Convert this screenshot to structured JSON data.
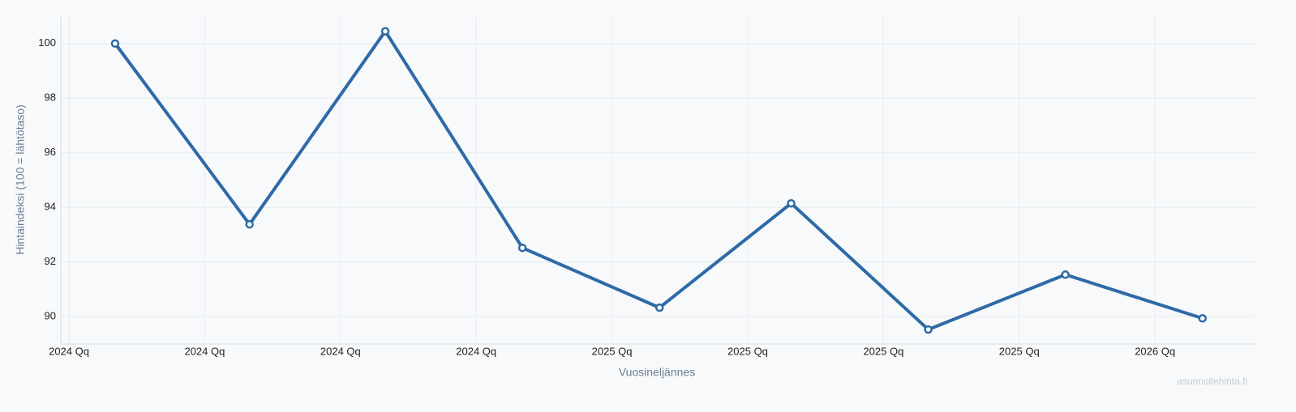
{
  "chart_data": {
    "type": "line",
    "x_label": "Vuosineljännes",
    "y_label": "Hintaindeksi (100 = lähtötaso)",
    "watermark": "asunnollehinta.fi",
    "x": [
      0.34,
      1.33,
      2.33,
      3.34,
      4.35,
      5.32,
      6.33,
      7.34,
      8.35
    ],
    "series": [
      {
        "name": "Hintaindeksi",
        "color": "#2f6aa6",
        "values": [
          100,
          93.38,
          100.45,
          92.52,
          90.33,
          94.15,
          89.53,
          91.54,
          89.94
        ]
      }
    ],
    "xlim": [
      -0.06,
      8.74
    ],
    "xticks": [
      {
        "value": 0,
        "label": "2024 Qq"
      },
      {
        "value": 1,
        "label": "2024 Qq"
      },
      {
        "value": 2,
        "label": "2024 Qq"
      },
      {
        "value": 3,
        "label": "2024 Qq"
      },
      {
        "value": 4,
        "label": "2025 Qq"
      },
      {
        "value": 5,
        "label": "2025 Qq"
      },
      {
        "value": 6,
        "label": "2025 Qq"
      },
      {
        "value": 7,
        "label": "2025 Qq"
      },
      {
        "value": 8,
        "label": "2026 Qq"
      }
    ],
    "ylim": [
      89,
      101
    ],
    "yticks": [
      90,
      92,
      94,
      96,
      98,
      100
    ],
    "grid": true
  }
}
